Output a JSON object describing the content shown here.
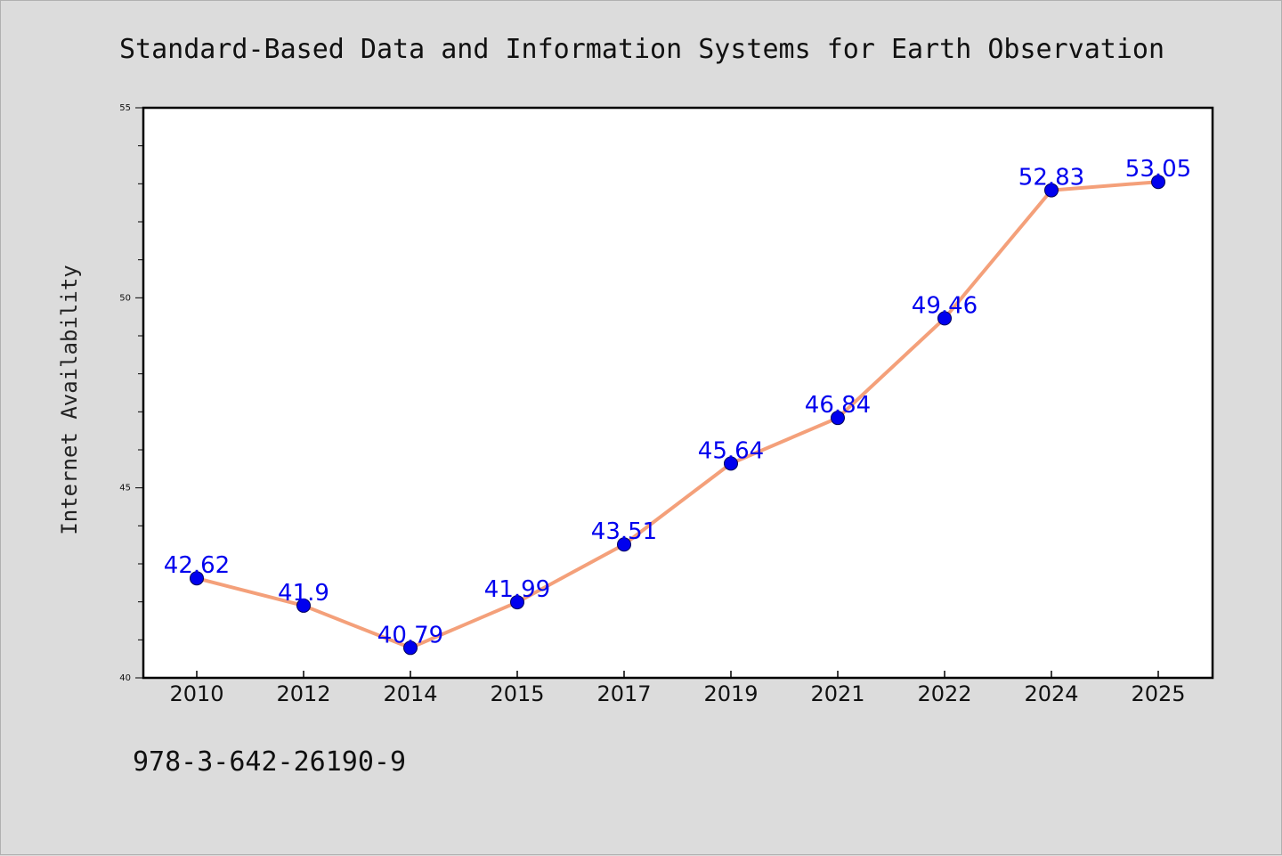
{
  "chart_data": {
    "type": "line",
    "title": "Standard-Based Data and Information Systems for Earth Observation",
    "ylabel": "Internet Availability",
    "xlabel": "",
    "categories": [
      "2010",
      "2012",
      "2014",
      "2015",
      "2017",
      "2019",
      "2021",
      "2022",
      "2024",
      "2025"
    ],
    "series": [
      {
        "values": [
          42.62,
          41.9,
          40.79,
          41.99,
          43.51,
          45.64,
          46.84,
          49.46,
          52.83,
          53.05
        ],
        "labels": [
          "42.62",
          "41.9",
          "40.79",
          "41.99",
          "43.51",
          "45.64",
          "46.84",
          "49.46",
          "52.83",
          "53.05"
        ]
      }
    ],
    "ylim": [
      40,
      55
    ],
    "yticks": [
      "40",
      "45",
      "50",
      "55"
    ],
    "grid": false,
    "legend": "none",
    "line_color": "#f4a07a",
    "marker_color": "#0000ee",
    "label_color": "#0000ee"
  },
  "footer": {
    "isbn": "978-3-642-26190-9"
  },
  "colors": {
    "background": "#dcdcdc",
    "plot_background": "#ffffff"
  }
}
